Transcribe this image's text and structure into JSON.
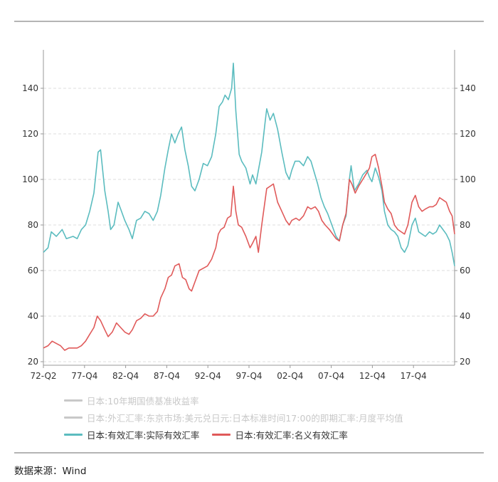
{
  "source": "数据来源：Wind",
  "chart_data": {
    "type": "line",
    "x_ticks": [
      "72-Q2",
      "77-Q4",
      "82-Q4",
      "87-Q4",
      "92-Q4",
      "97-Q4",
      "02-Q4",
      "07-Q4",
      "12-Q4",
      "17-Q4"
    ],
    "x_range": [
      1972.25,
      2021.5
    ],
    "ylim": [
      20,
      155
    ],
    "y_ticks_left": [
      20,
      40,
      60,
      80,
      100,
      120,
      140
    ],
    "y_ticks_right": [
      20,
      40,
      60,
      80,
      100,
      120,
      140
    ],
    "grid": "horizontal-dashed",
    "legend_position": "bottom",
    "legend_hidden": [
      {
        "name": "日本:10年期国债基准收益率",
        "color": "#c8c8c8"
      },
      {
        "name": "日本:外汇汇率:东京市场:美元兑日元:日本标准时间17:00的即期汇率:月度平均值",
        "color": "#c8c8c8"
      }
    ],
    "series": [
      {
        "name": "日本:有效汇率:实际有效汇率",
        "color": "#5bbcbf",
        "points": [
          [
            1972.25,
            68
          ],
          [
            1972.8,
            70
          ],
          [
            1973.2,
            77
          ],
          [
            1973.8,
            75
          ],
          [
            1974.5,
            78
          ],
          [
            1975.0,
            74
          ],
          [
            1975.8,
            75
          ],
          [
            1976.3,
            74
          ],
          [
            1976.8,
            78
          ],
          [
            1977.3,
            80
          ],
          [
            1977.8,
            86
          ],
          [
            1978.3,
            94
          ],
          [
            1978.8,
            112
          ],
          [
            1979.1,
            113
          ],
          [
            1979.6,
            95
          ],
          [
            1980.0,
            86
          ],
          [
            1980.3,
            78
          ],
          [
            1980.7,
            80
          ],
          [
            1981.2,
            90
          ],
          [
            1981.5,
            87
          ],
          [
            1982.0,
            82
          ],
          [
            1982.5,
            78
          ],
          [
            1982.9,
            74
          ],
          [
            1983.4,
            82
          ],
          [
            1983.9,
            83
          ],
          [
            1984.4,
            86
          ],
          [
            1984.9,
            85
          ],
          [
            1985.4,
            82
          ],
          [
            1985.9,
            86
          ],
          [
            1986.3,
            93
          ],
          [
            1986.8,
            105
          ],
          [
            1987.2,
            113
          ],
          [
            1987.6,
            120
          ],
          [
            1988.0,
            116
          ],
          [
            1988.4,
            120
          ],
          [
            1988.8,
            123
          ],
          [
            1989.2,
            113
          ],
          [
            1989.6,
            106
          ],
          [
            1990.0,
            97
          ],
          [
            1990.4,
            95
          ],
          [
            1990.9,
            100
          ],
          [
            1991.4,
            107
          ],
          [
            1991.9,
            106
          ],
          [
            1992.4,
            110
          ],
          [
            1992.9,
            120
          ],
          [
            1993.3,
            132
          ],
          [
            1993.7,
            134
          ],
          [
            1994.0,
            137
          ],
          [
            1994.4,
            135
          ],
          [
            1994.8,
            140
          ],
          [
            1995.0,
            151
          ],
          [
            1995.3,
            130
          ],
          [
            1995.7,
            111
          ],
          [
            1996.0,
            108
          ],
          [
            1996.5,
            105
          ],
          [
            1997.0,
            98
          ],
          [
            1997.3,
            102
          ],
          [
            1997.7,
            98
          ],
          [
            1998.0,
            104
          ],
          [
            1998.4,
            112
          ],
          [
            1998.8,
            125
          ],
          [
            1999.0,
            131
          ],
          [
            1999.4,
            126
          ],
          [
            1999.8,
            129
          ],
          [
            2000.3,
            122
          ],
          [
            2000.8,
            112
          ],
          [
            2001.3,
            103
          ],
          [
            2001.7,
            100
          ],
          [
            2002.0,
            104
          ],
          [
            2002.4,
            108
          ],
          [
            2002.9,
            108
          ],
          [
            2003.4,
            106
          ],
          [
            2003.9,
            110
          ],
          [
            2004.3,
            108
          ],
          [
            2004.7,
            103
          ],
          [
            2005.1,
            98
          ],
          [
            2005.5,
            92
          ],
          [
            2005.9,
            88
          ],
          [
            2006.3,
            85
          ],
          [
            2006.8,
            80
          ],
          [
            2007.3,
            75
          ],
          [
            2007.7,
            73
          ],
          [
            2008.1,
            80
          ],
          [
            2008.5,
            84
          ],
          [
            2008.9,
            100
          ],
          [
            2009.1,
            106
          ],
          [
            2009.5,
            95
          ],
          [
            2010.0,
            98
          ],
          [
            2010.5,
            102
          ],
          [
            2011.0,
            104
          ],
          [
            2011.3,
            101
          ],
          [
            2011.6,
            99
          ],
          [
            2012.0,
            105
          ],
          [
            2012.4,
            101
          ],
          [
            2012.8,
            95
          ],
          [
            2013.1,
            86
          ],
          [
            2013.5,
            80
          ],
          [
            2013.9,
            78
          ],
          [
            2014.3,
            77
          ],
          [
            2014.7,
            75
          ],
          [
            2015.1,
            70
          ],
          [
            2015.5,
            68
          ],
          [
            2015.9,
            71
          ],
          [
            2016.4,
            80
          ],
          [
            2016.8,
            83
          ],
          [
            2017.2,
            77
          ],
          [
            2017.6,
            76
          ],
          [
            2018.0,
            75
          ],
          [
            2018.5,
            77
          ],
          [
            2018.9,
            76
          ],
          [
            2019.3,
            77
          ],
          [
            2019.7,
            80
          ],
          [
            2020.1,
            78
          ],
          [
            2020.5,
            76
          ],
          [
            2020.9,
            73
          ],
          [
            2021.2,
            68
          ],
          [
            2021.5,
            62
          ]
        ]
      },
      {
        "name": "日本:有效汇率:名义有效汇率",
        "color": "#e05a5a",
        "points": [
          [
            1972.25,
            26
          ],
          [
            1972.8,
            27
          ],
          [
            1973.3,
            29
          ],
          [
            1973.8,
            28
          ],
          [
            1974.3,
            27
          ],
          [
            1974.8,
            25
          ],
          [
            1975.3,
            26
          ],
          [
            1975.8,
            26
          ],
          [
            1976.3,
            26
          ],
          [
            1976.8,
            27
          ],
          [
            1977.3,
            29
          ],
          [
            1977.8,
            32
          ],
          [
            1978.3,
            35
          ],
          [
            1978.7,
            40
          ],
          [
            1979.1,
            38
          ],
          [
            1979.6,
            34
          ],
          [
            1980.0,
            31
          ],
          [
            1980.5,
            33
          ],
          [
            1981.0,
            37
          ],
          [
            1981.5,
            35
          ],
          [
            1982.0,
            33
          ],
          [
            1982.5,
            32
          ],
          [
            1982.9,
            34
          ],
          [
            1983.4,
            38
          ],
          [
            1983.9,
            39
          ],
          [
            1984.4,
            41
          ],
          [
            1984.9,
            40
          ],
          [
            1985.4,
            40
          ],
          [
            1985.9,
            42
          ],
          [
            1986.3,
            48
          ],
          [
            1986.8,
            52
          ],
          [
            1987.2,
            57
          ],
          [
            1987.6,
            58
          ],
          [
            1988.0,
            62
          ],
          [
            1988.5,
            63
          ],
          [
            1988.9,
            57
          ],
          [
            1989.3,
            56
          ],
          [
            1989.7,
            52
          ],
          [
            1990.0,
            51
          ],
          [
            1990.4,
            55
          ],
          [
            1990.9,
            60
          ],
          [
            1991.4,
            61
          ],
          [
            1991.9,
            62
          ],
          [
            1992.4,
            65
          ],
          [
            1992.9,
            70
          ],
          [
            1993.2,
            76
          ],
          [
            1993.5,
            78
          ],
          [
            1993.9,
            79
          ],
          [
            1994.3,
            83
          ],
          [
            1994.7,
            84
          ],
          [
            1995.0,
            97
          ],
          [
            1995.3,
            86
          ],
          [
            1995.6,
            80
          ],
          [
            1996.0,
            79
          ],
          [
            1996.5,
            75
          ],
          [
            1997.0,
            70
          ],
          [
            1997.3,
            72
          ],
          [
            1997.7,
            75
          ],
          [
            1998.0,
            68
          ],
          [
            1998.4,
            80
          ],
          [
            1998.7,
            88
          ],
          [
            1999.0,
            96
          ],
          [
            1999.4,
            97
          ],
          [
            1999.8,
            98
          ],
          [
            2000.3,
            90
          ],
          [
            2000.8,
            86
          ],
          [
            2001.3,
            82
          ],
          [
            2001.7,
            80
          ],
          [
            2002.0,
            82
          ],
          [
            2002.5,
            83
          ],
          [
            2002.9,
            82
          ],
          [
            2003.4,
            84
          ],
          [
            2003.9,
            88
          ],
          [
            2004.3,
            87
          ],
          [
            2004.8,
            88
          ],
          [
            2005.2,
            86
          ],
          [
            2005.6,
            82
          ],
          [
            2006.0,
            80
          ],
          [
            2006.5,
            78
          ],
          [
            2006.9,
            76
          ],
          [
            2007.3,
            74
          ],
          [
            2007.7,
            73
          ],
          [
            2008.1,
            80
          ],
          [
            2008.5,
            85
          ],
          [
            2008.9,
            100
          ],
          [
            2009.2,
            98
          ],
          [
            2009.6,
            94
          ],
          [
            2010.0,
            97
          ],
          [
            2010.5,
            100
          ],
          [
            2011.0,
            103
          ],
          [
            2011.3,
            105
          ],
          [
            2011.6,
            110
          ],
          [
            2012.0,
            111
          ],
          [
            2012.4,
            105
          ],
          [
            2012.8,
            97
          ],
          [
            2013.1,
            90
          ],
          [
            2013.5,
            87
          ],
          [
            2013.9,
            85
          ],
          [
            2014.3,
            80
          ],
          [
            2014.7,
            78
          ],
          [
            2015.1,
            77
          ],
          [
            2015.5,
            76
          ],
          [
            2015.9,
            80
          ],
          [
            2016.4,
            90
          ],
          [
            2016.8,
            93
          ],
          [
            2017.2,
            88
          ],
          [
            2017.6,
            86
          ],
          [
            2018.0,
            87
          ],
          [
            2018.5,
            88
          ],
          [
            2018.9,
            88
          ],
          [
            2019.3,
            89
          ],
          [
            2019.7,
            92
          ],
          [
            2020.1,
            91
          ],
          [
            2020.5,
            90
          ],
          [
            2020.9,
            86
          ],
          [
            2021.2,
            84
          ],
          [
            2021.5,
            76
          ]
        ]
      }
    ]
  }
}
